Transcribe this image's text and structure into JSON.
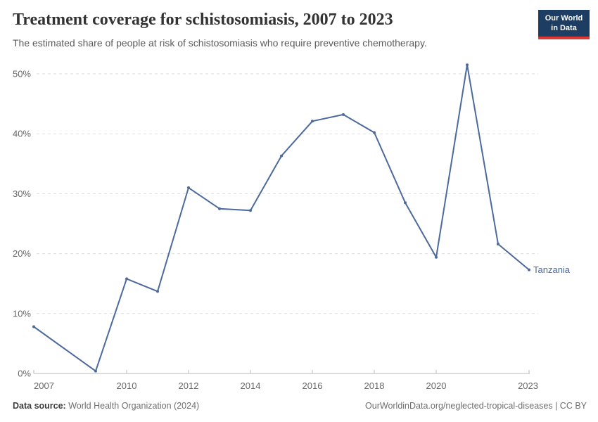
{
  "header": {
    "title": "Treatment coverage for schistosomiasis, 2007 to 2023",
    "subtitle": "The estimated share of people at risk of schistosomiasis who require preventive chemotherapy.",
    "logo": {
      "line1": "Our World",
      "line2": "in Data"
    }
  },
  "colors": {
    "line": "#4c6a9c",
    "grid": "#dedede",
    "axis": "#b8b8b8",
    "tick_label": "#666666",
    "title": "#333333",
    "subtitle": "#5b5b5b",
    "footer": "#6e6e6e",
    "logo_bg": "#1d3d63",
    "logo_bar": "#d93a34"
  },
  "chart_data": {
    "type": "line",
    "title": "Treatment coverage for schistosomiasis, 2007 to 2023",
    "subtitle": "The estimated share of people at risk of schistosomiasis who require preventive chemotherapy.",
    "xlabel": "",
    "ylabel": "",
    "xlim": [
      2007,
      2023
    ],
    "ylim": [
      0,
      50
    ],
    "grid": "horizontal-dashed",
    "legend_position": "end-of-line-label",
    "x_ticks": [
      2007,
      2010,
      2012,
      2014,
      2016,
      2018,
      2020,
      2023
    ],
    "y_ticks": [
      0,
      10,
      20,
      30,
      40,
      50
    ],
    "y_tick_suffix": "%",
    "series": [
      {
        "name": "Tanzania",
        "color": "#4c6a9c",
        "years": [
          2007,
          2009,
          2010,
          2011,
          2012,
          2013,
          2014,
          2015,
          2016,
          2017,
          2018,
          2019,
          2020,
          2021,
          2022,
          2023
        ],
        "values": [
          7.8,
          0.4,
          15.8,
          13.7,
          31.0,
          27.5,
          27.2,
          36.3,
          42.1,
          43.2,
          40.2,
          28.5,
          19.4,
          51.5,
          21.6,
          17.3
        ]
      }
    ]
  },
  "footer": {
    "source_label": "Data source:",
    "source_text": "World Health Organization (2024)",
    "attribution": "OurWorldinData.org/neglected-tropical-diseases | CC BY"
  }
}
